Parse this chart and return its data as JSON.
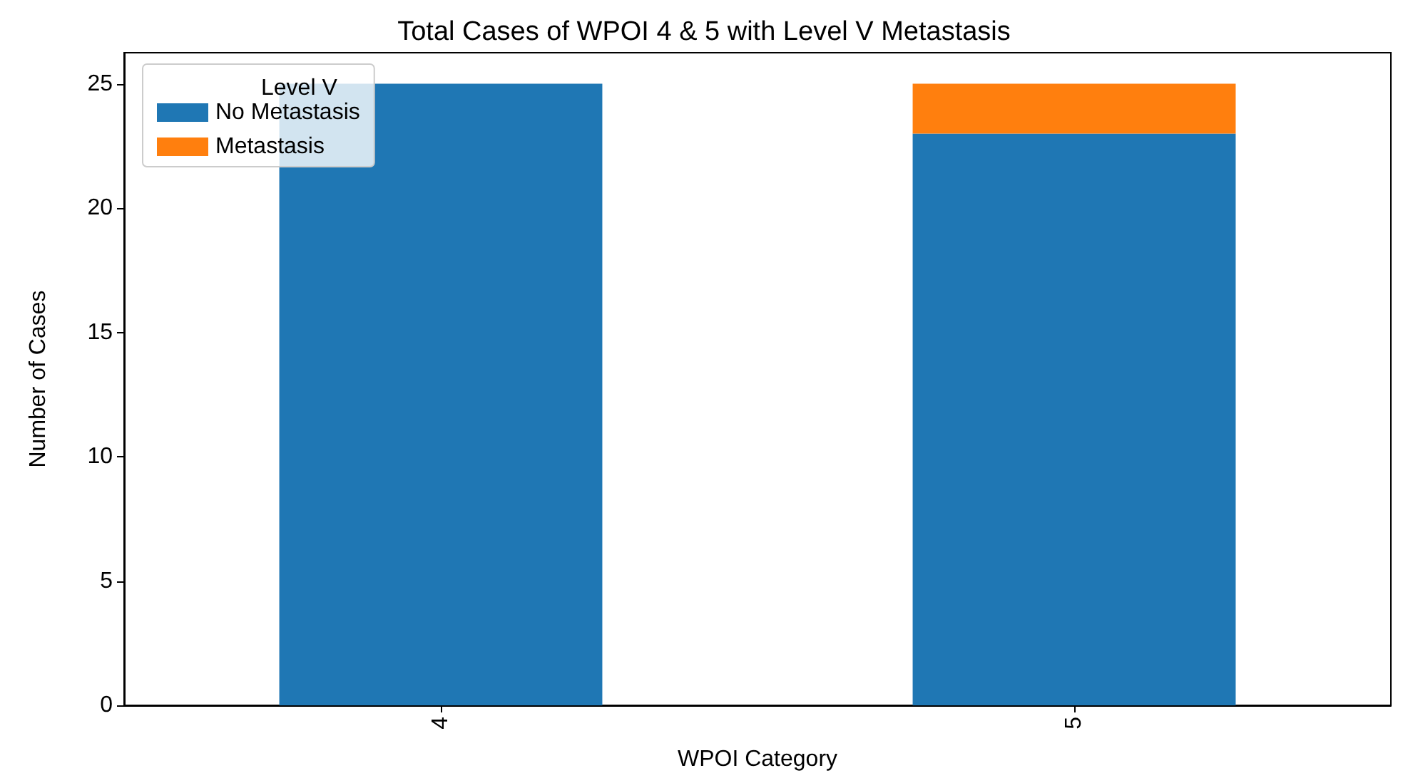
{
  "chart_data": {
    "type": "bar",
    "title": "Total Cases of WPOI 4 & 5 with Level V Metastasis",
    "xlabel": "WPOI Category",
    "ylabel": "Number of Cases",
    "legend_title": "Level V",
    "categories": [
      "4",
      "5"
    ],
    "series": [
      {
        "name": "No Metastasis",
        "color": "#1f77b4",
        "values": [
          25,
          23
        ]
      },
      {
        "name": "Metastasis",
        "color": "#ff7f0e",
        "values": [
          0,
          2
        ]
      }
    ],
    "stacked": true,
    "ylim": [
      0,
      26.25
    ],
    "yticks": [
      0,
      5,
      10,
      15,
      20,
      25
    ],
    "grid": false,
    "legend": "top left"
  }
}
